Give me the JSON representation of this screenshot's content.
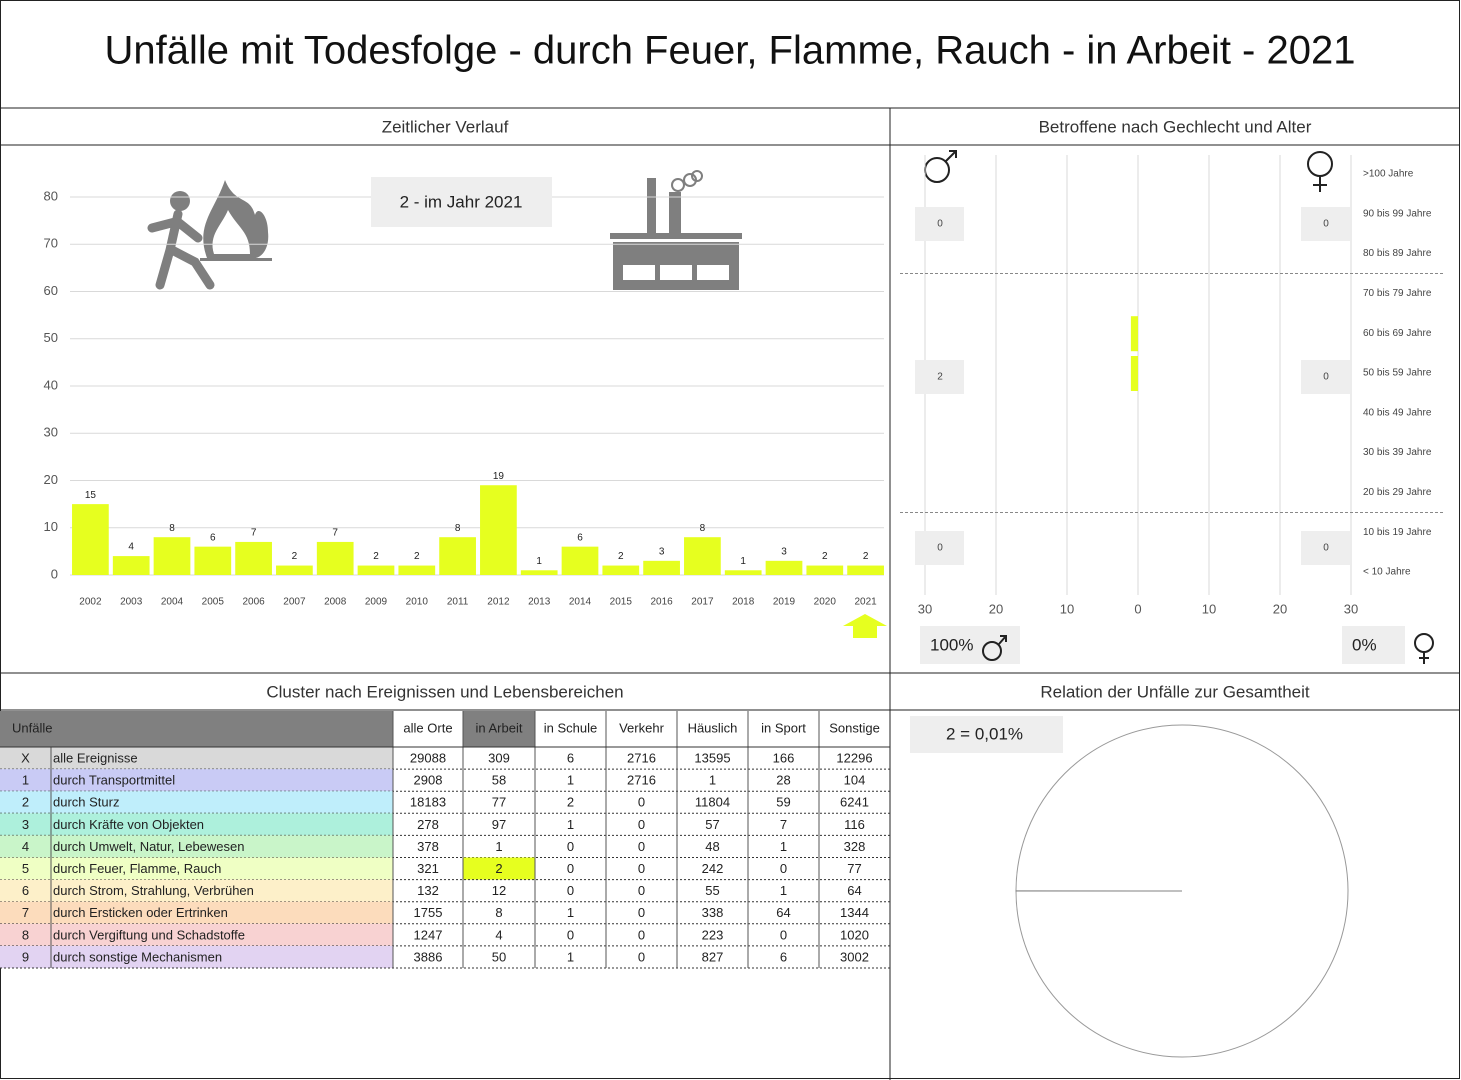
{
  "header": {
    "title": "Unfälle mit Todesfolge - durch Feuer, Flamme, Rauch - in Arbeit - 2021"
  },
  "panels": [
    "Zeitlicher Verlauf",
    "Betroffene nach Gechlecht und Alter",
    "Cluster nach Ereignissen und Lebensbereichen",
    "Relation der Unfälle zur Gesamtheit"
  ],
  "chart_data": [
    {
      "type": "bar",
      "annotation": "2 - im Jahr 2021",
      "categories": [
        "2002",
        "2003",
        "2004",
        "2005",
        "2006",
        "2007",
        "2008",
        "2009",
        "2010",
        "2011",
        "2012",
        "2013",
        "2014",
        "2015",
        "2016",
        "2017",
        "2018",
        "2019",
        "2020",
        "2021"
      ],
      "values": [
        15,
        4,
        8,
        6,
        7,
        2,
        7,
        2,
        2,
        8,
        19,
        1,
        6,
        2,
        3,
        8,
        1,
        3,
        2,
        2
      ],
      "color": "#e6ff1f",
      "ylim": [
        0,
        80
      ],
      "yticks": [
        0,
        10,
        20,
        30,
        40,
        50,
        60,
        70,
        80
      ],
      "grid": true
    },
    {
      "type": "pyramid",
      "categories": [
        ">100 Jahre",
        "90 bis 99 Jahre",
        "80 bis 89 Jahre",
        "70 bis 79 Jahre",
        "60 bis 69 Jahre",
        "50 bis 59 Jahre",
        "40 bis 49 Jahre",
        "30 bis 39 Jahre",
        "20 bis 29 Jahre",
        "10 bis 19 Jahre",
        "< 10 Jahre"
      ],
      "series": [
        {
          "color": "#e6ff1f",
          "values": [
            0,
            0,
            0,
            0,
            1,
            1,
            0,
            0,
            0,
            0,
            0
          ],
          "group_values": [
            0,
            2,
            0
          ],
          "share": 100,
          "share_label": "100%"
        },
        {
          "color": "#e6ff1f",
          "values": [
            0,
            0,
            0,
            0,
            0,
            0,
            0,
            0,
            0,
            0,
            0
          ],
          "group_values": [
            0,
            0,
            0
          ],
          "share": 0,
          "share_label": "0%"
        }
      ],
      "xlim": [
        -30,
        30
      ],
      "xticks": [
        {
          "value": -30,
          "label": "30"
        },
        {
          "value": -20,
          "label": "20"
        },
        {
          "value": -10,
          "label": "10"
        },
        0,
        10,
        20,
        30
      ],
      "grid": true
    },
    {
      "type": "pie",
      "annotation": "2 =  0,01%",
      "values": [
        0.01
      ],
      "color": "#808080"
    }
  ],
  "table": {
    "columns": [
      "Unfälle",
      "alle Orte",
      "in Arbeit",
      "in Schule",
      "Verkehr",
      "Häuslich",
      "in Sport",
      "Sonstige"
    ],
    "rows": [
      [
        "X",
        "alle Ereignisse",
        29088,
        309,
        6,
        2716,
        13595,
        166,
        12296
      ],
      [
        "1",
        "durch Transportmittel",
        2908,
        58,
        1,
        2716,
        1,
        28,
        104
      ],
      [
        "2",
        "durch Sturz",
        18183,
        77,
        2,
        0,
        11804,
        59,
        6241
      ],
      [
        "3",
        "durch Kräfte von Objekten",
        278,
        97,
        1,
        0,
        57,
        7,
        116
      ],
      [
        "4",
        "durch Umwelt, Natur, Lebewesen",
        378,
        1,
        0,
        0,
        48,
        1,
        328
      ],
      [
        "5",
        "durch Feuer, Flamme, Rauch",
        321,
        2,
        0,
        0,
        242,
        0,
        77
      ],
      [
        "6",
        "durch Strom, Strahlung, Verbrühen",
        132,
        12,
        0,
        0,
        55,
        1,
        64
      ],
      [
        "7",
        "durch Ersticken oder Ertrinken",
        1755,
        8,
        1,
        0,
        338,
        64,
        1344
      ],
      [
        "8",
        "durch Vergiftung und Schadstoffe",
        1247,
        4,
        0,
        0,
        223,
        0,
        1020
      ],
      [
        "9",
        "durch sonstige Mechanismen",
        3886,
        50,
        1,
        0,
        827,
        6,
        3002
      ]
    ]
  }
}
